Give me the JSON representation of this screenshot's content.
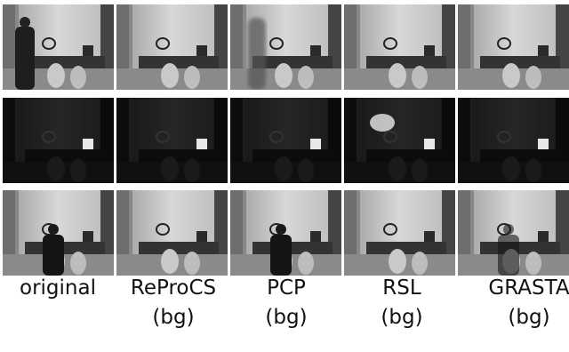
{
  "columns": [
    {
      "label": "original"
    },
    {
      "label": "ReProCS",
      "sub": "(bg)"
    },
    {
      "label": "PCP",
      "sub": "(bg)"
    },
    {
      "label": "RSL",
      "sub": "(bg)"
    },
    {
      "label": "GRASTA",
      "sub": "(bg)"
    }
  ]
}
